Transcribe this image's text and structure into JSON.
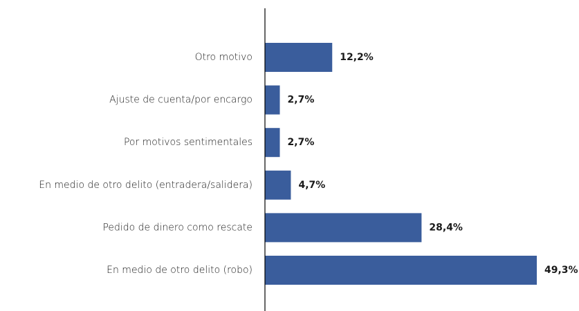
{
  "chart_data": {
    "type": "bar",
    "orientation": "horizontal",
    "categories": [
      "Otro motivo",
      "Ajuste de cuenta/por encargo",
      "Por motivos sentimentales",
      "En medio de otro delito (entradera/salidera)",
      "Pedido de dinero como rescate",
      "En medio de otro delito (robo)"
    ],
    "values": [
      12.2,
      2.7,
      2.7,
      4.7,
      28.4,
      49.3
    ],
    "value_labels": [
      "12,2%",
      "2,7%",
      "2,7%",
      "4,7%",
      "28,4%",
      "49,3%"
    ],
    "color": "#3a5d9c"
  }
}
